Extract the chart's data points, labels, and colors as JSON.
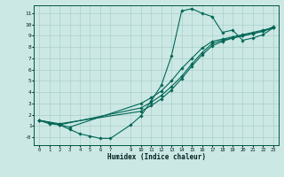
{
  "background_color": "#cce8e4",
  "grid_color": "#aacfcb",
  "line_color": "#006655",
  "xlabel": "Humidex (Indice chaleur)",
  "xlim": [
    -0.5,
    23.5
  ],
  "ylim": [
    -0.7,
    11.7
  ],
  "yticks": [
    0,
    1,
    2,
    3,
    4,
    5,
    6,
    7,
    8,
    9,
    10,
    11
  ],
  "ytick_labels": [
    "-0",
    "1",
    "2",
    "3",
    "4",
    "5",
    "6",
    "7",
    "8",
    "9",
    "10",
    "11"
  ],
  "xticks": [
    0,
    1,
    2,
    3,
    4,
    5,
    6,
    7,
    9,
    10,
    11,
    12,
    13,
    14,
    15,
    16,
    17,
    18,
    19,
    20,
    21,
    22,
    23
  ],
  "xtick_labels": [
    "0",
    "1",
    "2",
    "3",
    "4",
    "5",
    "6",
    "7",
    "9",
    "10",
    "11",
    "12",
    "13",
    "14",
    "15",
    "16",
    "17",
    "18",
    "19",
    "20",
    "21",
    "22",
    "23"
  ],
  "line1_x": [
    0,
    1,
    2,
    3,
    4,
    5,
    6,
    7,
    9,
    10,
    11,
    12,
    13,
    14,
    15,
    16,
    17,
    18,
    19,
    20,
    21,
    22,
    23
  ],
  "line1_y": [
    1.5,
    1.2,
    1.1,
    0.7,
    0.3,
    0.1,
    -0.1,
    -0.1,
    1.1,
    1.9,
    3.2,
    4.6,
    7.2,
    11.2,
    11.4,
    11.0,
    10.7,
    9.3,
    9.5,
    8.6,
    8.8,
    9.1,
    9.7
  ],
  "line2_x": [
    0,
    2,
    3,
    10,
    11,
    12,
    13,
    14,
    15,
    16,
    17,
    18,
    19,
    20,
    21,
    22,
    23
  ],
  "line2_y": [
    1.5,
    1.1,
    0.9,
    3.0,
    3.5,
    4.1,
    5.0,
    6.1,
    7.0,
    7.9,
    8.5,
    8.7,
    8.9,
    9.1,
    9.3,
    9.5,
    9.7
  ],
  "line3_x": [
    0,
    2,
    10,
    11,
    12,
    13,
    14,
    15,
    16,
    17,
    18,
    19,
    20,
    21,
    22,
    23
  ],
  "line3_y": [
    1.5,
    1.1,
    2.6,
    3.1,
    3.7,
    4.5,
    5.4,
    6.5,
    7.5,
    8.3,
    8.6,
    8.8,
    9.0,
    9.2,
    9.4,
    9.7
  ],
  "line4_x": [
    0,
    2,
    10,
    11,
    12,
    13,
    14,
    15,
    16,
    17,
    18,
    19,
    20,
    21,
    22,
    23
  ],
  "line4_y": [
    1.5,
    1.2,
    2.3,
    2.8,
    3.4,
    4.2,
    5.2,
    6.3,
    7.3,
    8.1,
    8.5,
    8.8,
    9.0,
    9.2,
    9.4,
    9.8
  ]
}
